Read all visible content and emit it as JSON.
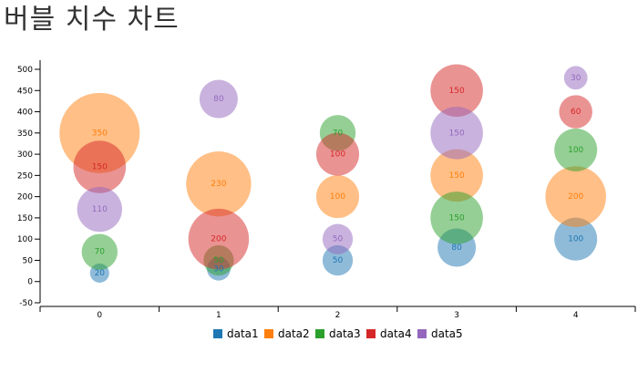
{
  "title": "버블 치수 차트",
  "chart_data": {
    "type": "scatter",
    "subtype": "bubble",
    "categories": [
      "0",
      "1",
      "2",
      "3",
      "4"
    ],
    "ylim": [
      -50,
      520
    ],
    "yticks": [
      -50,
      0,
      50,
      100,
      150,
      200,
      250,
      300,
      350,
      400,
      450,
      500
    ],
    "bubble_scale_note": "bubble area proportional to value",
    "legend_position": "bottom",
    "grid": false,
    "series": [
      {
        "name": "data1",
        "color": "#1f77b4",
        "values": [
          20,
          30,
          50,
          80,
          100
        ]
      },
      {
        "name": "data2",
        "color": "#ff7f0e",
        "values": [
          350,
          230,
          200,
          250,
          200
        ]
      },
      {
        "name": "data3",
        "color": "#2ca02c",
        "values": [
          70,
          50,
          350,
          150,
          310
        ]
      },
      {
        "name": "data4",
        "color": "#d62728",
        "values": [
          270,
          100,
          300,
          450,
          400
        ]
      },
      {
        "name": "data5",
        "color": "#9467bd",
        "values": [
          170,
          430,
          100,
          350,
          480
        ]
      }
    ],
    "labels": [
      [
        "20",
        "30",
        "50",
        "80",
        "100"
      ],
      [
        "350",
        "230",
        "100",
        "150",
        "200"
      ],
      [
        "70",
        "50",
        "70",
        "150",
        "100"
      ],
      [
        "150",
        "200",
        "100",
        "150",
        "60"
      ],
      [
        "110",
        "80",
        "50",
        "150",
        "30"
      ]
    ],
    "sizes": [
      [
        20,
        30,
        50,
        80,
        100
      ],
      [
        350,
        230,
        100,
        150,
        200
      ],
      [
        70,
        50,
        70,
        150,
        100
      ],
      [
        150,
        200,
        100,
        150,
        60
      ],
      [
        110,
        80,
        50,
        150,
        30
      ]
    ]
  }
}
